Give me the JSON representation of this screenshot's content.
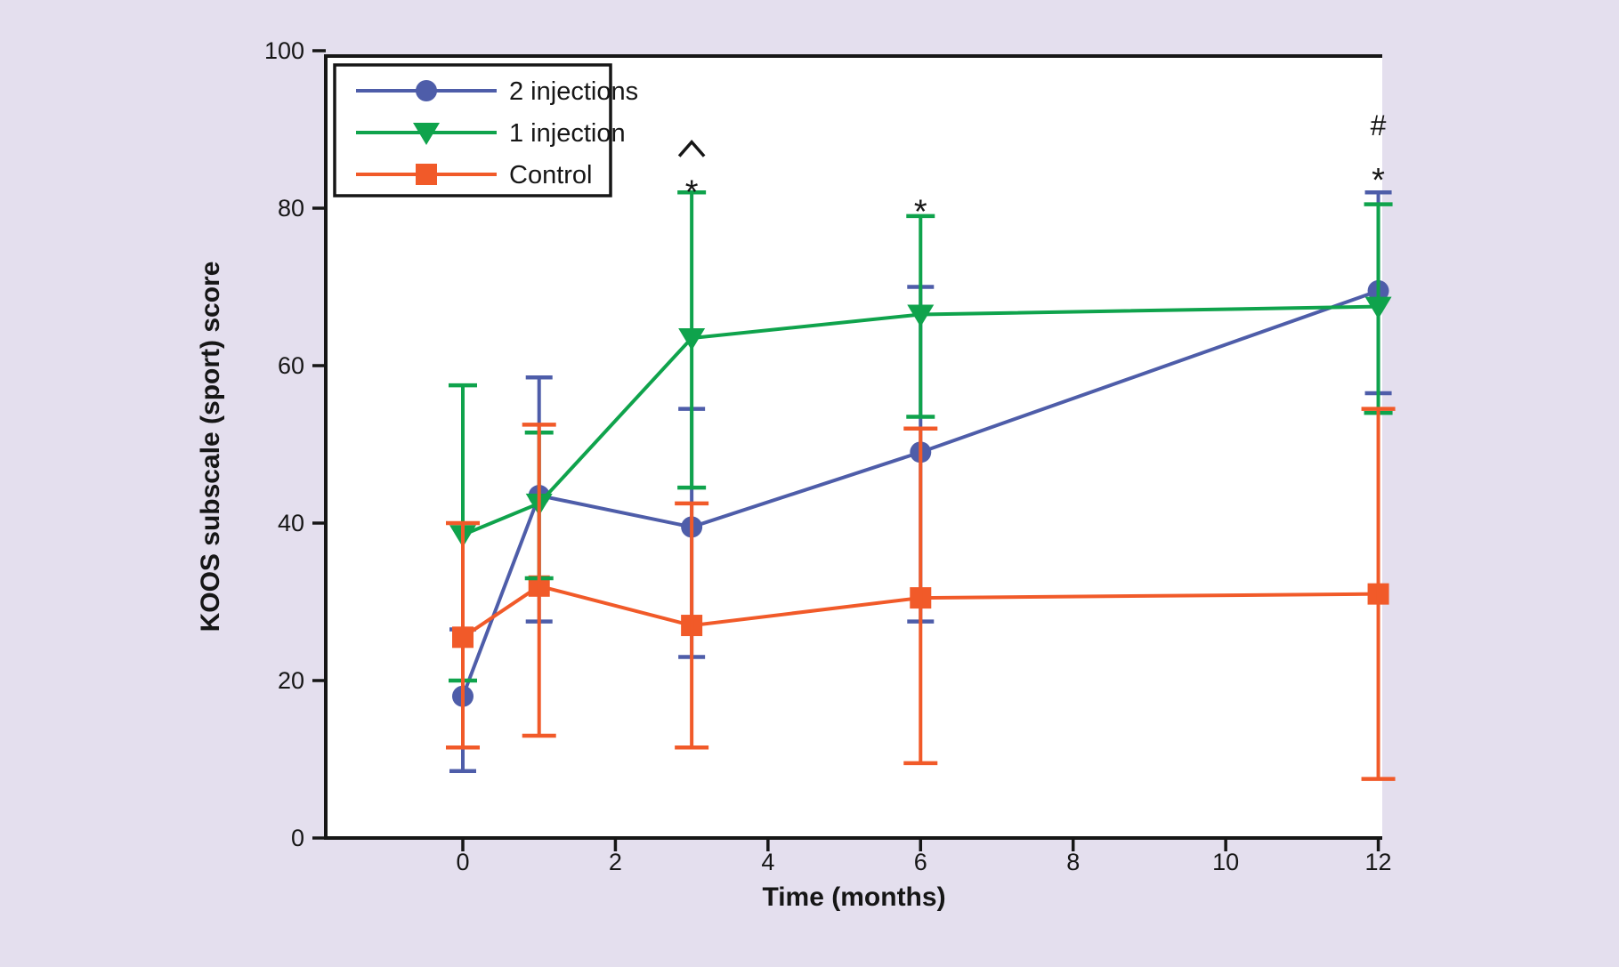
{
  "figure": {
    "background_color": "#E4DFEE",
    "plot_background_color": "#FFFFFF",
    "axis_color": "#161616"
  },
  "chart_data": {
    "type": "line",
    "title": "",
    "xlabel": "Time (months)",
    "ylabel": "KOOS subscale (sport) score",
    "x_ticks": [
      0,
      2,
      4,
      6,
      8,
      10,
      12
    ],
    "y_ticks": [
      0,
      20,
      40,
      60,
      80,
      100
    ],
    "xlim": [
      -1.8,
      12.05
    ],
    "ylim": [
      0,
      100
    ],
    "grid": false,
    "legend_position": "top-left",
    "x": [
      0,
      1,
      3,
      6,
      12
    ],
    "series": [
      {
        "name": "2 injections",
        "marker": "circle",
        "color": "#4E5DA9",
        "values": [
          18,
          43.5,
          39.5,
          49,
          69.5
        ],
        "err_low": [
          8.5,
          27.5,
          23,
          27.5,
          56.5
        ],
        "err_high": [
          26.5,
          58.5,
          54.5,
          70,
          82
        ]
      },
      {
        "name": "1 injection",
        "marker": "triangle-down",
        "color": "#0FA34C",
        "values": [
          38.5,
          42.5,
          63.5,
          66.5,
          67.5
        ],
        "err_low": [
          20,
          33,
          44.5,
          53.5,
          54
        ],
        "err_high": [
          57.5,
          51.5,
          82,
          79,
          80.5
        ]
      },
      {
        "name": "Control",
        "marker": "square",
        "color": "#F15A29",
        "values": [
          25.5,
          32,
          27,
          30.5,
          31
        ],
        "err_low": [
          11.5,
          13,
          11.5,
          9.5,
          7.5
        ],
        "err_high": [
          40,
          52.5,
          42.5,
          52,
          54.5
        ]
      }
    ],
    "annotations": [
      {
        "text": "^",
        "x": 3,
        "y": 87.5
      },
      {
        "text": "*",
        "x": 3,
        "y": 83
      },
      {
        "text": "*",
        "x": 6,
        "y": 80.5
      },
      {
        "text": "#",
        "x": 12,
        "y": 90.5
      },
      {
        "text": "*",
        "x": 12,
        "y": 84.5
      }
    ]
  }
}
